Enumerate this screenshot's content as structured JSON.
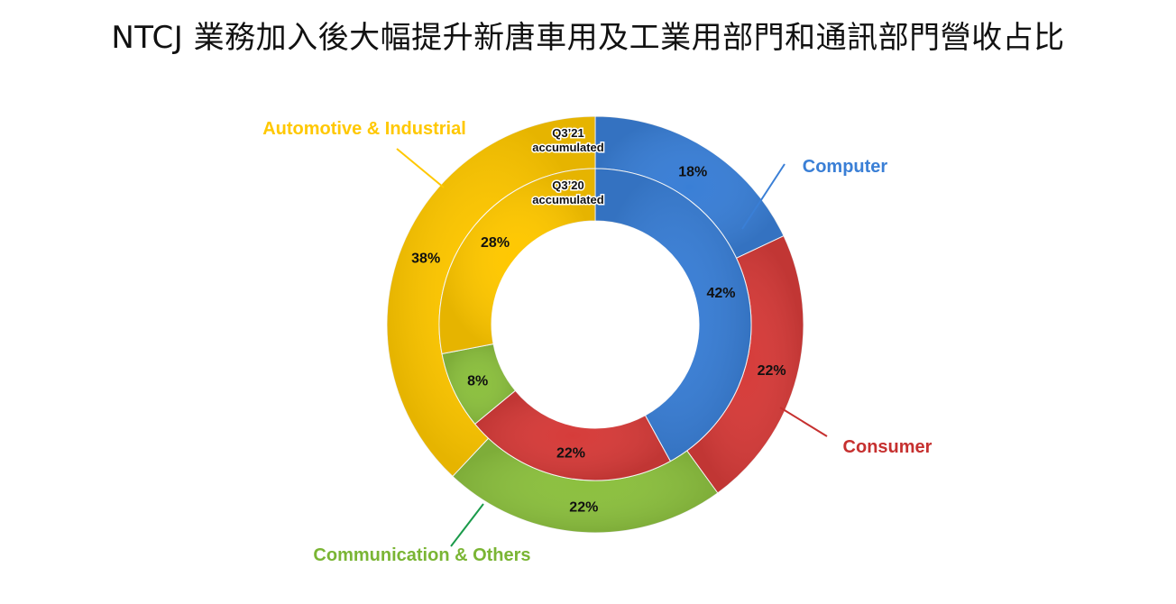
{
  "title": "NTCJ 業務加入後大幅提升新唐車用及工業用部門和通訊部門營收占比",
  "chart_data": {
    "type": "pie",
    "style": "double-donut",
    "categories": [
      "Computer",
      "Consumer",
      "Communication & Others",
      "Automotive & Industrial"
    ],
    "colors": {
      "Computer": "#3a7fd6",
      "Consumer": "#d63c3a",
      "Communication & Others": "#8cc03f",
      "Automotive & Industrial": "#ffc800"
    },
    "series": [
      {
        "name": "Q3’21 accumulated",
        "ring": "outer",
        "label_lines": [
          "Q3’21",
          "accumulated"
        ],
        "values": [
          18,
          22,
          22,
          38
        ],
        "labels": [
          "18%",
          "22%",
          "22%",
          "38%"
        ]
      },
      {
        "name": "Q3’20 accumulated",
        "ring": "inner",
        "label_lines": [
          "Q3’20",
          "accumulated"
        ],
        "values": [
          42,
          22,
          8,
          28
        ],
        "labels": [
          "42%",
          "22%",
          "8%",
          "28%"
        ]
      }
    ],
    "direction": "clockwise from top"
  }
}
